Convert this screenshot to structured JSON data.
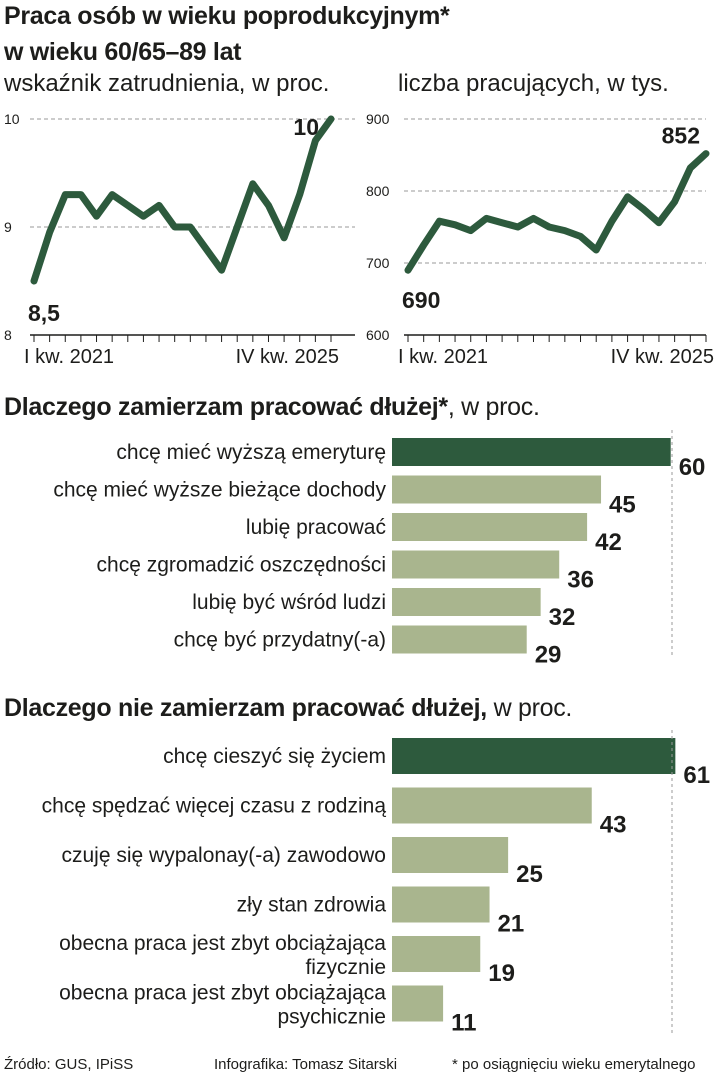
{
  "header": {
    "title_line1": "Praca osób w wieku poprodukcyjnym*",
    "title_line2": "w wieku  60/65–89 lat"
  },
  "colors": {
    "dark_green": "#2d5a3d",
    "light_green": "#a9b58e",
    "text": "#1d1d1b",
    "grid": "#999999"
  },
  "chart_data": [
    {
      "type": "line",
      "title": "wskaźnik zatrudnienia, w proc.",
      "ylim": [
        8,
        10
      ],
      "yticks": [
        "8",
        "9",
        "10"
      ],
      "x_start_label": "I kw. 2021",
      "x_end_label": "IV kw. 2025",
      "first_value_label": "8,5",
      "last_value_label": "10",
      "values": [
        8.5,
        8.95,
        9.3,
        9.3,
        9.1,
        9.3,
        9.2,
        9.1,
        9.2,
        9.0,
        9.0,
        8.8,
        8.6,
        9.0,
        9.4,
        9.2,
        8.9,
        9.3,
        9.8,
        10.0
      ]
    },
    {
      "type": "line",
      "title": "liczba pracujących, w tys.",
      "ylim": [
        600,
        900
      ],
      "yticks": [
        "600",
        "700",
        "800",
        "900"
      ],
      "x_start_label": "I kw. 2021",
      "x_end_label": "IV kw. 2025",
      "first_value_label": "690",
      "last_value_label": "852",
      "values": [
        690,
        725,
        758,
        753,
        745,
        762,
        756,
        750,
        762,
        750,
        745,
        737,
        718,
        758,
        792,
        775,
        756,
        785,
        832,
        852
      ]
    },
    {
      "type": "bar",
      "title": "Dlaczego zamierzam pracować dłużej*",
      "unit": ", w proc.",
      "xlim": [
        0,
        62
      ],
      "categories": [
        "chcę mieć wyższą emeryturę",
        "chcę mieć wyższe bieżące dochody",
        "lubię pracować",
        "chcę zgromadzić oszczędności",
        "lubię być wśród ludzi",
        "chcę być przydatny(-a)"
      ],
      "values": [
        60,
        45,
        42,
        36,
        32,
        29
      ]
    },
    {
      "type": "bar",
      "title": "Dlaczego nie  zamierzam pracować dłużej,",
      "unit": " w proc.",
      "xlim": [
        0,
        62
      ],
      "categories": [
        [
          "chcę cieszyć się życiem"
        ],
        [
          "chcę spędzać więcej czasu z rodziną"
        ],
        [
          "czuję się wypalonay(-a) zawodowo"
        ],
        [
          "zły stan zdrowia"
        ],
        [
          "obecna praca jest zbyt obciążająca",
          "fizycznie"
        ],
        [
          "obecna praca jest zbyt obciążająca",
          "psychicznie"
        ]
      ],
      "values": [
        61,
        43,
        25,
        21,
        19,
        11
      ]
    }
  ],
  "footer": {
    "source": "Źródło: GUS, IPiSS",
    "author": "Infografika: Tomasz Sitarski",
    "note": "* po osiągnięciu wieku emerytalnego"
  }
}
